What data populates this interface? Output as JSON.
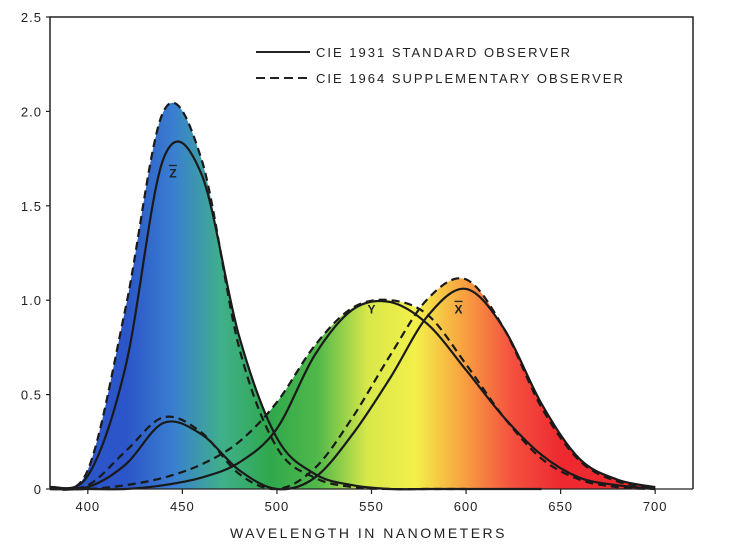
{
  "chart_data": {
    "type": "line",
    "title": "",
    "xlabel": "WAVELENGTH IN NANOMETERS",
    "ylabel": "",
    "xlim": [
      380,
      720
    ],
    "ylim": [
      0,
      2.5
    ],
    "xticks": [
      400,
      450,
      500,
      550,
      600,
      650,
      700
    ],
    "yticks": [
      0,
      0.5,
      1.0,
      1.5,
      2.0,
      2.5
    ],
    "ytick_labels": [
      "0",
      "0.5",
      "1.0",
      "1.5",
      "2.0",
      "2.5"
    ],
    "grid": false,
    "legend_position": "top-right",
    "legend": [
      {
        "label": "CIE 1931 STANDARD OBSERVER",
        "style": "solid"
      },
      {
        "label": "CIE 1964 SUPPLEMENTARY OBSERVER",
        "style": "dashed"
      }
    ],
    "curve_labels": [
      {
        "text": "Z",
        "x": 445,
        "y": 1.65
      },
      {
        "text": "Y",
        "x": 550,
        "y": 0.93
      },
      {
        "text": "X",
        "x": 596,
        "y": 0.93
      }
    ],
    "series": [
      {
        "observer": "CIE 1931",
        "function": "x",
        "style": "solid",
        "x": [
          380,
          400,
          420,
          440,
          460,
          480,
          500,
          520,
          540,
          560,
          580,
          600,
          620,
          640,
          660,
          680,
          700
        ],
        "y": [
          0.0,
          0.01,
          0.13,
          0.35,
          0.29,
          0.1,
          0.0,
          0.06,
          0.29,
          0.59,
          0.92,
          1.06,
          0.85,
          0.45,
          0.16,
          0.05,
          0.01
        ]
      },
      {
        "observer": "CIE 1931",
        "function": "y",
        "style": "solid",
        "x": [
          380,
          400,
          420,
          440,
          460,
          480,
          500,
          520,
          540,
          560,
          580,
          600,
          620,
          640,
          660,
          680,
          700
        ],
        "y": [
          0.0,
          0.0,
          0.0,
          0.02,
          0.06,
          0.14,
          0.32,
          0.71,
          0.95,
          0.99,
          0.87,
          0.63,
          0.38,
          0.18,
          0.06,
          0.02,
          0.0
        ]
      },
      {
        "observer": "CIE 1931",
        "function": "z",
        "style": "solid",
        "x": [
          380,
          400,
          420,
          440,
          460,
          480,
          500,
          520,
          540,
          560,
          580,
          600,
          620,
          640
        ],
        "y": [
          0.01,
          0.07,
          0.65,
          1.75,
          1.67,
          0.81,
          0.27,
          0.08,
          0.02,
          0.0,
          0.0,
          0.0,
          0.0,
          0.0
        ]
      },
      {
        "observer": "CIE 1964",
        "function": "x",
        "style": "dashed",
        "x": [
          380,
          400,
          420,
          440,
          460,
          480,
          500,
          520,
          540,
          560,
          580,
          600,
          620,
          640,
          660,
          680,
          700
        ],
        "y": [
          0.0,
          0.02,
          0.2,
          0.38,
          0.3,
          0.08,
          0.0,
          0.11,
          0.38,
          0.71,
          1.01,
          1.11,
          0.85,
          0.43,
          0.15,
          0.04,
          0.01
        ]
      },
      {
        "observer": "CIE 1964",
        "function": "y",
        "style": "dashed",
        "x": [
          380,
          400,
          420,
          440,
          460,
          480,
          500,
          520,
          540,
          560,
          580,
          600,
          620,
          640,
          660,
          680,
          700
        ],
        "y": [
          0.0,
          0.0,
          0.02,
          0.06,
          0.13,
          0.25,
          0.46,
          0.76,
          0.96,
          1.0,
          0.92,
          0.66,
          0.38,
          0.16,
          0.05,
          0.01,
          0.0
        ]
      },
      {
        "observer": "CIE 1964",
        "function": "z",
        "style": "dashed",
        "x": [
          380,
          400,
          420,
          440,
          460,
          480,
          500,
          520,
          540,
          560,
          580,
          600
        ],
        "y": [
          0.0,
          0.1,
          0.96,
          2.0,
          1.75,
          0.75,
          0.22,
          0.06,
          0.01,
          0.0,
          0.0,
          0.0
        ]
      }
    ],
    "colors": {
      "curve": "#1a1a1a",
      "background": "#ffffff",
      "spectrum": [
        "#2b55c8",
        "#3a7fd0",
        "#3fb08a",
        "#2fa84c",
        "#52b94a",
        "#d8e84a",
        "#f3f04a",
        "#f8a040",
        "#f4503f",
        "#ee2a30"
      ]
    }
  }
}
